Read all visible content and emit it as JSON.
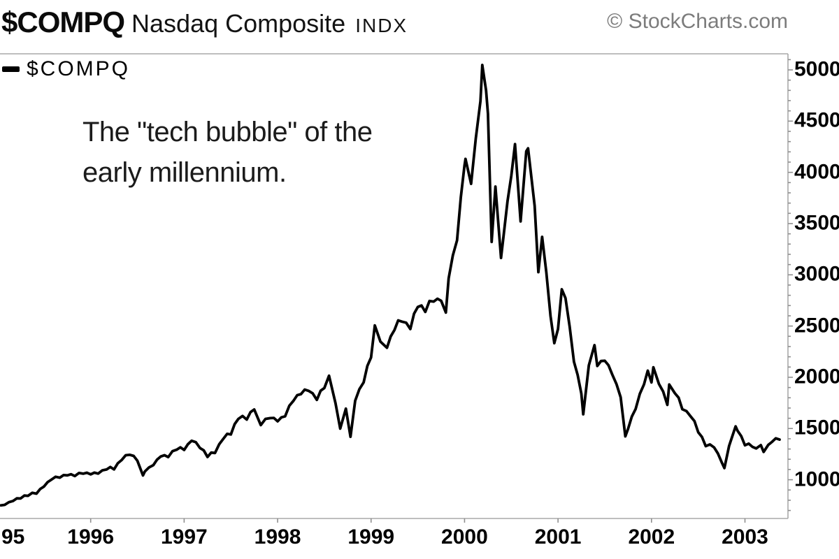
{
  "header": {
    "symbol": "$COMPQ",
    "name": "Nasdaq Composite",
    "type_tag": "INDX",
    "credit": "© StockCharts.com"
  },
  "legend": {
    "label": "$COMPQ"
  },
  "annotation": {
    "line1": "The \"tech bubble\" of the",
    "line2": "early millennium."
  },
  "colors": {
    "line": "#000000",
    "axis": "#a9a9a9",
    "tick": "#8f8f8f",
    "label": "#000000",
    "credit": "#7c7c7c"
  },
  "chart_data": {
    "type": "line",
    "title": "$COMPQ Nasdaq Composite INDX",
    "xlabel": "",
    "ylabel": "",
    "grid": false,
    "legend_position": "top-left",
    "xlim": [
      1995.03,
      2003.46
    ],
    "ylim": [
      622,
      5157
    ],
    "x_ticks": [
      {
        "t": 1995,
        "label": "95"
      },
      {
        "t": 1996,
        "label": "1996"
      },
      {
        "t": 1997,
        "label": "1997"
      },
      {
        "t": 1998,
        "label": "1998"
      },
      {
        "t": 1999,
        "label": "1999"
      },
      {
        "t": 2000,
        "label": "2000"
      },
      {
        "t": 2001,
        "label": "2001"
      },
      {
        "t": 2002,
        "label": "2002"
      },
      {
        "t": 2003,
        "label": "2003"
      }
    ],
    "y_ticks": [
      1000,
      1500,
      2000,
      2500,
      3000,
      3500,
      4000,
      4500,
      5000
    ],
    "y_minor_step": 100,
    "series": [
      {
        "name": "$COMPQ",
        "color": "#000000",
        "points": [
          [
            1995.04,
            750
          ],
          [
            1995.08,
            755
          ],
          [
            1995.17,
            793
          ],
          [
            1995.25,
            817
          ],
          [
            1995.33,
            843
          ],
          [
            1995.42,
            864
          ],
          [
            1995.5,
            933
          ],
          [
            1995.58,
            1001
          ],
          [
            1995.67,
            1020
          ],
          [
            1995.75,
            1043
          ],
          [
            1995.83,
            1036
          ],
          [
            1995.92,
            1059
          ],
          [
            1996.0,
            1052
          ],
          [
            1996.08,
            1060
          ],
          [
            1996.17,
            1100
          ],
          [
            1996.25,
            1101
          ],
          [
            1996.33,
            1191
          ],
          [
            1996.42,
            1243
          ],
          [
            1996.5,
            1185
          ],
          [
            1996.56,
            1042
          ],
          [
            1996.58,
            1081
          ],
          [
            1996.67,
            1142
          ],
          [
            1996.75,
            1227
          ],
          [
            1996.83,
            1221
          ],
          [
            1996.92,
            1293
          ],
          [
            1997.0,
            1291
          ],
          [
            1997.08,
            1380
          ],
          [
            1997.17,
            1309
          ],
          [
            1997.25,
            1222
          ],
          [
            1997.33,
            1261
          ],
          [
            1997.42,
            1400
          ],
          [
            1997.5,
            1442
          ],
          [
            1997.58,
            1594
          ],
          [
            1997.67,
            1587
          ],
          [
            1997.75,
            1686
          ],
          [
            1997.82,
            1533
          ],
          [
            1997.87,
            1594
          ],
          [
            1997.92,
            1601
          ],
          [
            1998.0,
            1570
          ],
          [
            1998.08,
            1619
          ],
          [
            1998.17,
            1771
          ],
          [
            1998.25,
            1836
          ],
          [
            1998.33,
            1868
          ],
          [
            1998.42,
            1779
          ],
          [
            1998.5,
            1895
          ],
          [
            1998.55,
            2015
          ],
          [
            1998.62,
            1746
          ],
          [
            1998.67,
            1499
          ],
          [
            1998.73,
            1694
          ],
          [
            1998.78,
            1419
          ],
          [
            1998.83,
            1771
          ],
          [
            1998.92,
            1950
          ],
          [
            1999.0,
            2193
          ],
          [
            1999.04,
            2506
          ],
          [
            1999.1,
            2348
          ],
          [
            1999.17,
            2288
          ],
          [
            1999.25,
            2461
          ],
          [
            1999.33,
            2543
          ],
          [
            1999.42,
            2471
          ],
          [
            1999.5,
            2686
          ],
          [
            1999.58,
            2638
          ],
          [
            1999.67,
            2739
          ],
          [
            1999.75,
            2746
          ],
          [
            1999.8,
            2632
          ],
          [
            1999.83,
            2966
          ],
          [
            1999.92,
            3336
          ],
          [
            2000.0,
            4069
          ],
          [
            2000.01,
            4131
          ],
          [
            2000.07,
            3888
          ],
          [
            2000.17,
            4697
          ],
          [
            2000.19,
            5048
          ],
          [
            2000.23,
            4800
          ],
          [
            2000.25,
            4573
          ],
          [
            2000.29,
            3321
          ],
          [
            2000.33,
            3861
          ],
          [
            2000.39,
            3165
          ],
          [
            2000.42,
            3401
          ],
          [
            2000.5,
            3966
          ],
          [
            2000.54,
            4275
          ],
          [
            2000.58,
            3767
          ],
          [
            2000.6,
            3521
          ],
          [
            2000.66,
            4206
          ],
          [
            2000.68,
            4234
          ],
          [
            2000.75,
            3673
          ],
          [
            2000.79,
            3026
          ],
          [
            2000.83,
            3370
          ],
          [
            2000.92,
            2598
          ],
          [
            2000.96,
            2333
          ],
          [
            2001.0,
            2471
          ],
          [
            2001.04,
            2859
          ],
          [
            2001.08,
            2773
          ],
          [
            2001.17,
            2152
          ],
          [
            2001.25,
            1840
          ],
          [
            2001.27,
            1639
          ],
          [
            2001.33,
            2116
          ],
          [
            2001.39,
            2314
          ],
          [
            2001.42,
            2110
          ],
          [
            2001.5,
            2161
          ],
          [
            2001.58,
            2027
          ],
          [
            2001.67,
            1805
          ],
          [
            2001.72,
            1423
          ],
          [
            2001.75,
            1498
          ],
          [
            2001.83,
            1690
          ],
          [
            2001.92,
            1931
          ],
          [
            2001.96,
            2065
          ],
          [
            2002.0,
            1950
          ],
          [
            2002.02,
            2098
          ],
          [
            2002.08,
            1934
          ],
          [
            2002.17,
            1731
          ],
          [
            2002.19,
            1929
          ],
          [
            2002.25,
            1845
          ],
          [
            2002.33,
            1688
          ],
          [
            2002.42,
            1616
          ],
          [
            2002.5,
            1463
          ],
          [
            2002.58,
            1328
          ],
          [
            2002.67,
            1315
          ],
          [
            2002.75,
            1172
          ],
          [
            2002.78,
            1114
          ],
          [
            2002.83,
            1330
          ],
          [
            2002.9,
            1521
          ],
          [
            2002.92,
            1479
          ],
          [
            2003.0,
            1336
          ],
          [
            2003.08,
            1321
          ],
          [
            2003.12,
            1305
          ],
          [
            2003.17,
            1338
          ],
          [
            2003.2,
            1271
          ],
          [
            2003.25,
            1341
          ],
          [
            2003.29,
            1370
          ],
          [
            2003.33,
            1404
          ],
          [
            2003.37,
            1392
          ]
        ]
      }
    ]
  }
}
